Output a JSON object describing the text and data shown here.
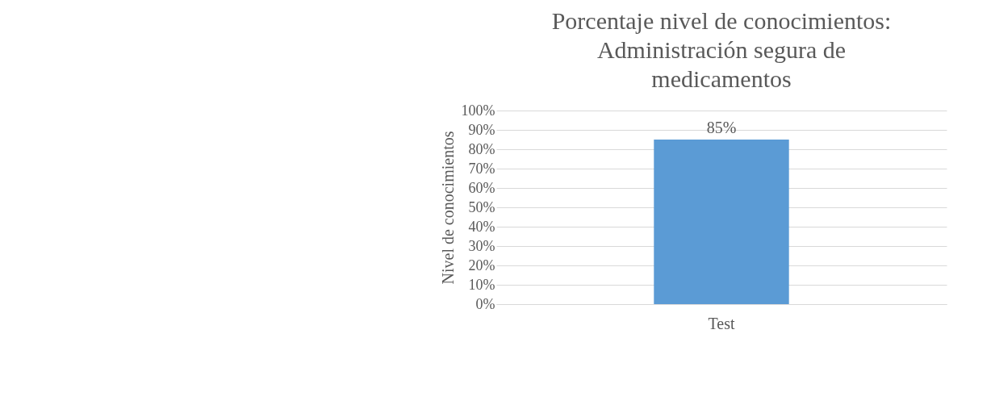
{
  "chart_data": {
    "type": "bar",
    "title": "Porcentaje nivel de conocimientos: Administración segura de medicamentos",
    "ylabel": "Nivel de conocimientos",
    "categories": [
      "Test"
    ],
    "values": [
      85
    ],
    "color": "#5b9bd5",
    "value_labels": [
      "85%"
    ],
    "ylim": [
      0,
      100
    ],
    "yticks": [
      {
        "value": 0,
        "label": "0%"
      },
      {
        "value": 10,
        "label": "10%"
      },
      {
        "value": 20,
        "label": "20%"
      },
      {
        "value": 30,
        "label": "30%"
      },
      {
        "value": 40,
        "label": "40%"
      },
      {
        "value": 50,
        "label": "50%"
      },
      {
        "value": 60,
        "label": "60%"
      },
      {
        "value": 70,
        "label": "70%"
      },
      {
        "value": 80,
        "label": "80%"
      },
      {
        "value": 90,
        "label": "90%"
      },
      {
        "value": 100,
        "label": "100%"
      }
    ],
    "grid": "y"
  }
}
